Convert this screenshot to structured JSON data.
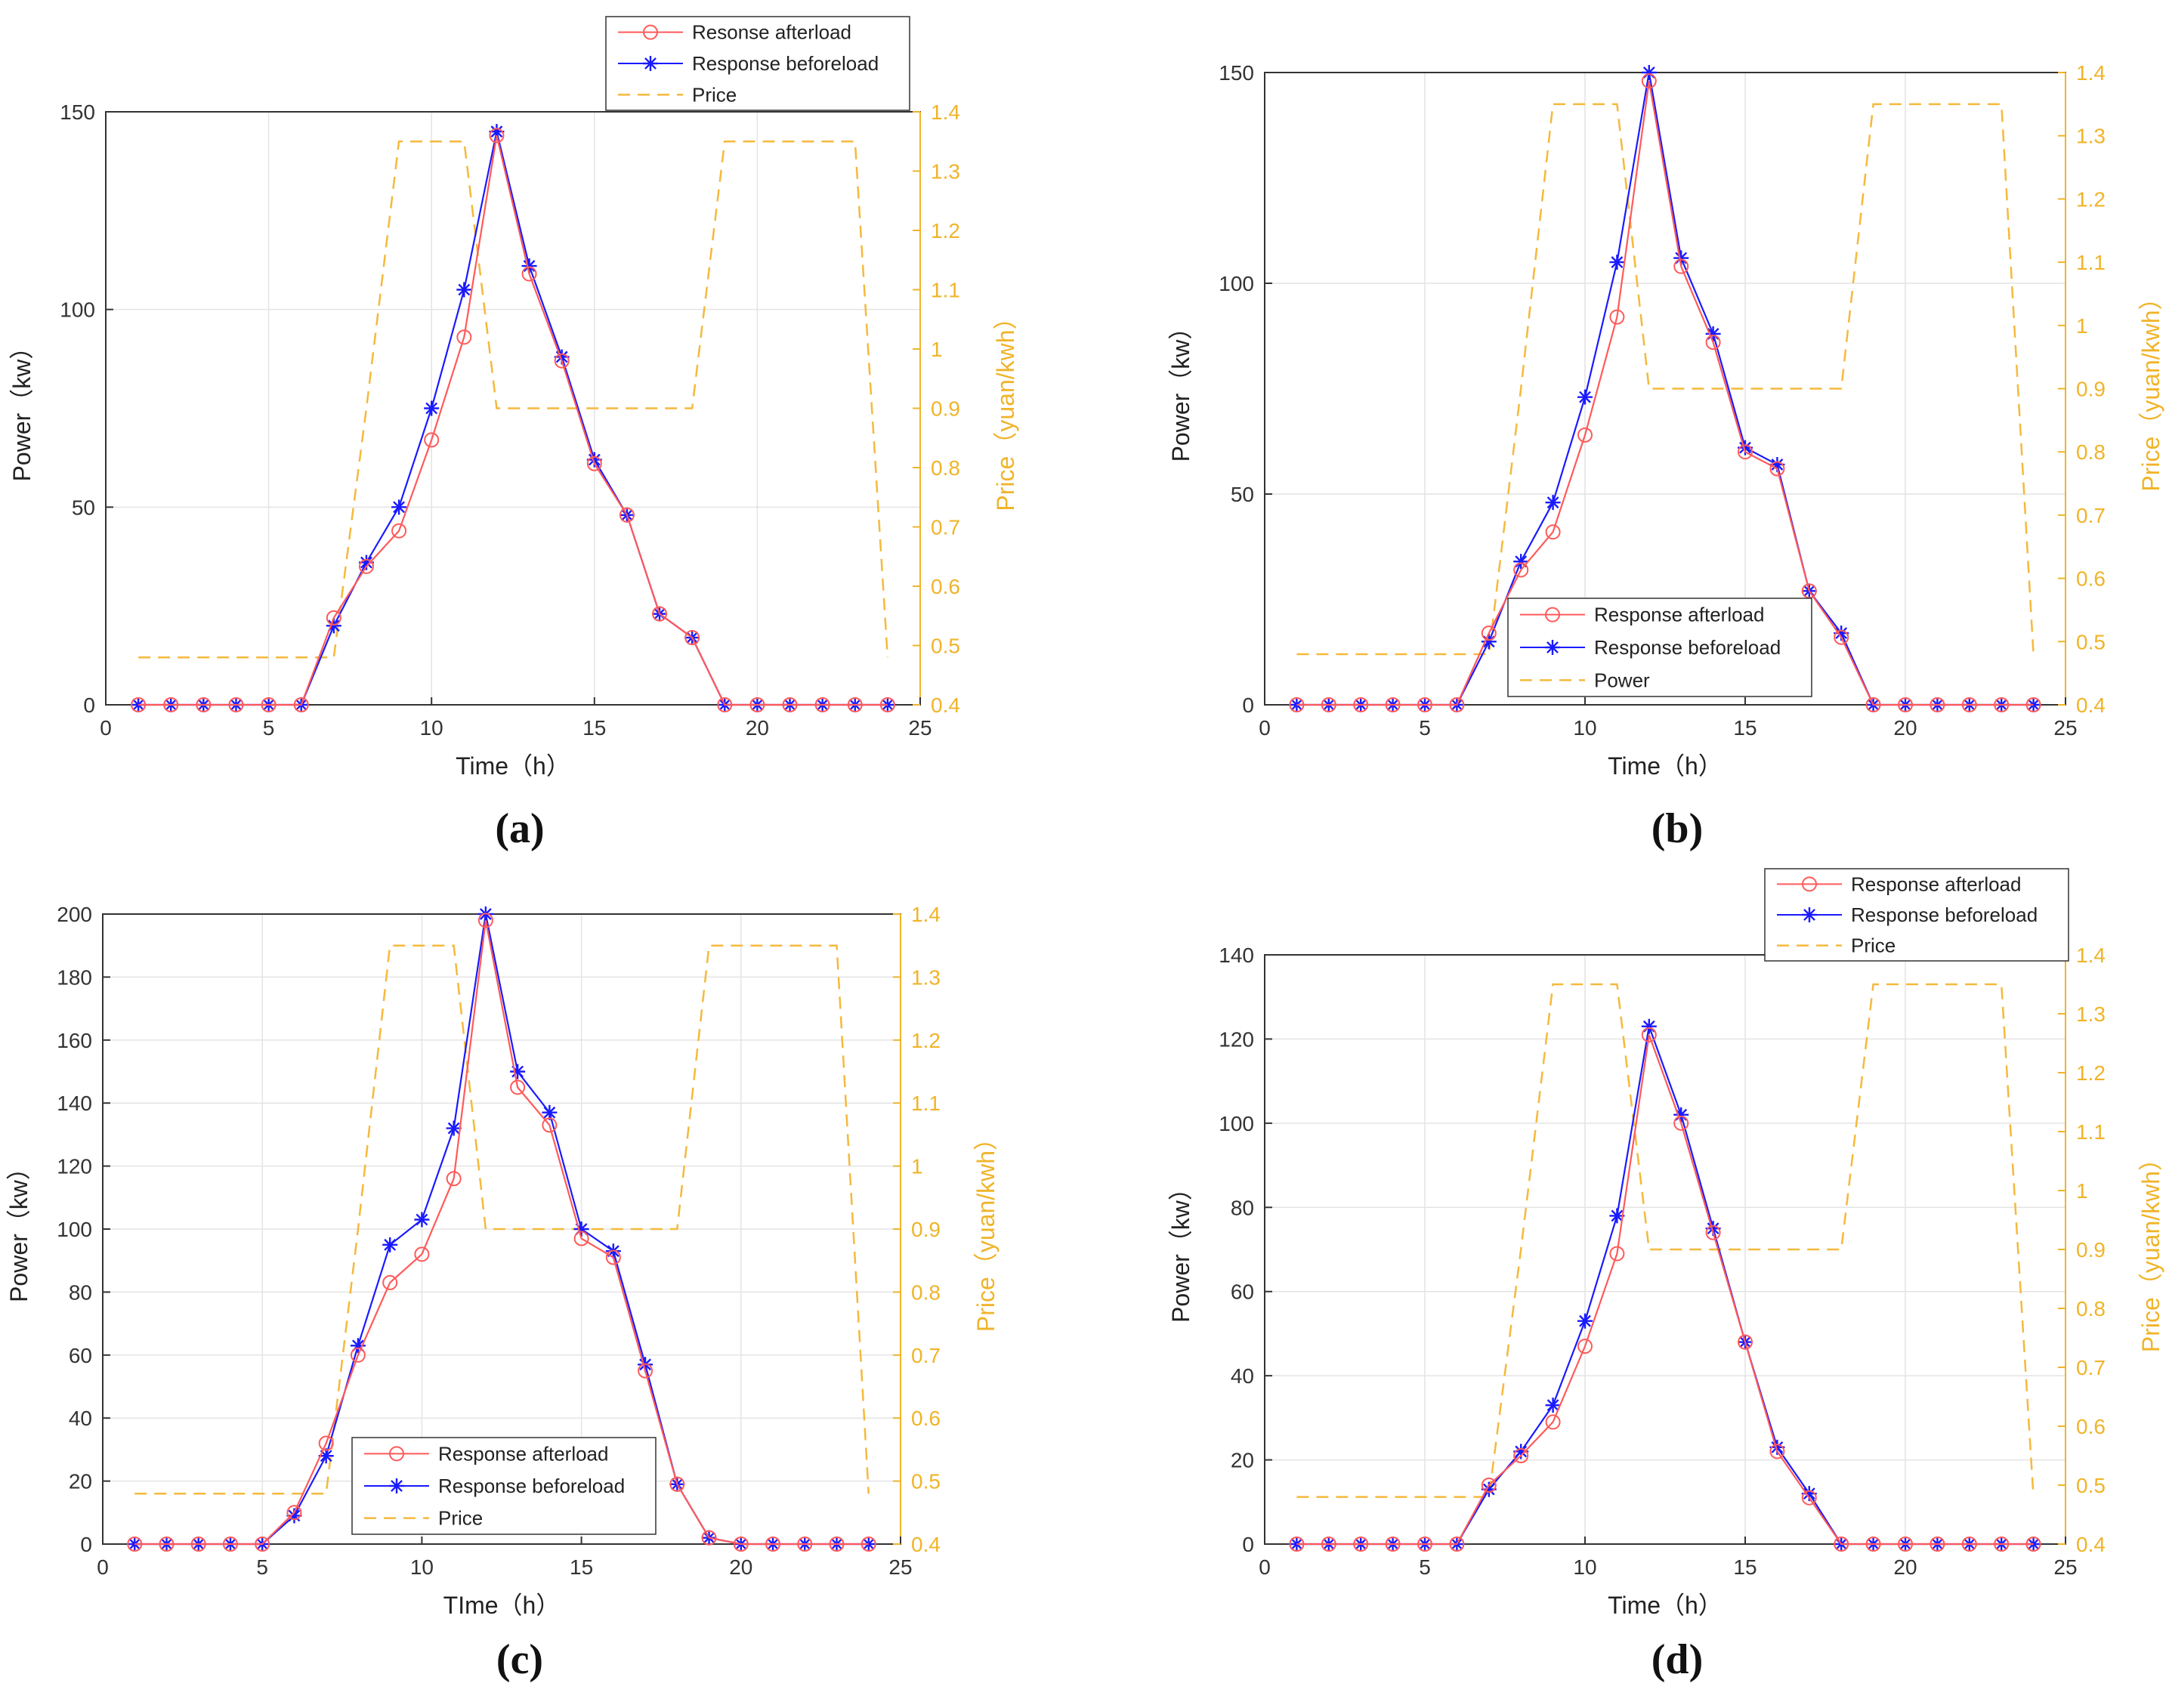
{
  "chart_data": [
    {
      "panel_label": "(a)",
      "type": "line",
      "xlabel": "Time（h）",
      "ylabel": "Power（kw）",
      "ylabel_right": "Price（yuan/kwh）",
      "xlim": [
        0,
        25
      ],
      "ylim": [
        0,
        150
      ],
      "ylim_right": [
        0.4,
        1.4
      ],
      "xticks": [
        0,
        5,
        10,
        15,
        20,
        25
      ],
      "yticks": [
        0,
        50,
        100,
        150
      ],
      "yticks_right": [
        0.4,
        0.5,
        0.6,
        0.7,
        0.8,
        0.9,
        1,
        1.1,
        1.2,
        1.3,
        1.4
      ],
      "grid": true,
      "legend_position": "top-right-outside",
      "x": [
        1,
        2,
        3,
        4,
        5,
        6,
        7,
        8,
        9,
        10,
        11,
        12,
        13,
        14,
        15,
        16,
        17,
        18,
        19,
        20,
        21,
        22,
        23,
        24
      ],
      "series": [
        {
          "name": "Resonse afterload",
          "axis": "left",
          "style": "circle-red",
          "values": [
            0,
            0,
            0,
            0,
            0,
            0,
            22,
            35,
            44,
            67,
            93,
            144,
            109,
            87,
            61,
            48,
            23,
            17,
            0,
            0,
            0,
            0,
            0,
            0
          ]
        },
        {
          "name": "Response beforeload",
          "axis": "left",
          "style": "star-blue",
          "values": [
            0,
            0,
            0,
            0,
            0,
            0,
            20,
            36,
            50,
            75,
            105,
            145,
            111,
            88,
            62,
            48,
            23,
            17,
            0,
            0,
            0,
            0,
            0,
            0
          ]
        },
        {
          "name": "Price",
          "axis": "right",
          "style": "dash-orange",
          "values": [
            0.48,
            0.48,
            0.48,
            0.48,
            0.48,
            0.48,
            0.48,
            0.9,
            1.35,
            1.35,
            1.35,
            0.9,
            0.9,
            0.9,
            0.9,
            0.9,
            0.9,
            0.9,
            1.35,
            1.35,
            1.35,
            1.35,
            1.35,
            0.48
          ]
        }
      ]
    },
    {
      "panel_label": "(b)",
      "type": "line",
      "xlabel": "Time（h）",
      "ylabel": "Power（kw）",
      "ylabel_right": "Price（yuan/kwh）",
      "xlim": [
        0,
        25
      ],
      "ylim": [
        0,
        150
      ],
      "ylim_right": [
        0.4,
        1.4
      ],
      "xticks": [
        0,
        5,
        10,
        15,
        20,
        25
      ],
      "yticks": [
        0,
        50,
        100,
        150
      ],
      "yticks_right": [
        0.4,
        0.5,
        0.6,
        0.7,
        0.8,
        0.9,
        1,
        1.1,
        1.2,
        1.3,
        1.4
      ],
      "grid": true,
      "legend_position": "bottom-center",
      "x": [
        1,
        2,
        3,
        4,
        5,
        6,
        7,
        8,
        9,
        10,
        11,
        12,
        13,
        14,
        15,
        16,
        17,
        18,
        19,
        20,
        21,
        22,
        23,
        24
      ],
      "series": [
        {
          "name": "Response afterload",
          "axis": "left",
          "style": "circle-red",
          "values": [
            0,
            0,
            0,
            0,
            0,
            0,
            17,
            32,
            41,
            64,
            92,
            148,
            104,
            86,
            60,
            56,
            27,
            16,
            0,
            0,
            0,
            0,
            0,
            0
          ]
        },
        {
          "name": "Response beforeload",
          "axis": "left",
          "style": "star-blue",
          "values": [
            0,
            0,
            0,
            0,
            0,
            0,
            15,
            34,
            48,
            73,
            105,
            150,
            106,
            88,
            61,
            57,
            27,
            17,
            0,
            0,
            0,
            0,
            0,
            0
          ]
        },
        {
          "name": "Power",
          "axis": "right",
          "style": "dash-orange",
          "values": [
            0.48,
            0.48,
            0.48,
            0.48,
            0.48,
            0.48,
            0.48,
            0.9,
            1.35,
            1.35,
            1.35,
            0.9,
            0.9,
            0.9,
            0.9,
            0.9,
            0.9,
            0.9,
            1.35,
            1.35,
            1.35,
            1.35,
            1.35,
            0.48
          ]
        }
      ]
    },
    {
      "panel_label": "(c)",
      "type": "line",
      "xlabel": "TIme（h）",
      "ylabel": "Power（kw）",
      "ylabel_right": "Price（yuan/kwh）",
      "xlim": [
        0,
        25
      ],
      "ylim": [
        0,
        200
      ],
      "ylim_right": [
        0.4,
        1.4
      ],
      "xticks": [
        0,
        5,
        10,
        15,
        20,
        25
      ],
      "yticks": [
        0,
        20,
        40,
        60,
        80,
        100,
        120,
        140,
        160,
        180,
        200
      ],
      "yticks_right": [
        0.4,
        0.5,
        0.6,
        0.7,
        0.8,
        0.9,
        1,
        1.1,
        1.2,
        1.3,
        1.4
      ],
      "grid": true,
      "legend_position": "bottom-center",
      "x": [
        1,
        2,
        3,
        4,
        5,
        6,
        7,
        8,
        9,
        10,
        11,
        12,
        13,
        14,
        15,
        16,
        17,
        18,
        19,
        20,
        21,
        22,
        23,
        24
      ],
      "series": [
        {
          "name": "Response afterload",
          "axis": "left",
          "style": "circle-red",
          "values": [
            0,
            0,
            0,
            0,
            0,
            10,
            32,
            60,
            83,
            92,
            116,
            198,
            145,
            133,
            97,
            91,
            55,
            19,
            2,
            0,
            0,
            0,
            0,
            0
          ]
        },
        {
          "name": "Response beforeload",
          "axis": "left",
          "style": "star-blue",
          "values": [
            0,
            0,
            0,
            0,
            0,
            9,
            28,
            63,
            95,
            103,
            132,
            200,
            150,
            137,
            100,
            93,
            57,
            19,
            2,
            0,
            0,
            0,
            0,
            0
          ]
        },
        {
          "name": "Price",
          "axis": "right",
          "style": "dash-orange",
          "values": [
            0.48,
            0.48,
            0.48,
            0.48,
            0.48,
            0.48,
            0.48,
            0.9,
            1.35,
            1.35,
            1.35,
            0.9,
            0.9,
            0.9,
            0.9,
            0.9,
            0.9,
            0.9,
            1.35,
            1.35,
            1.35,
            1.35,
            1.35,
            0.48
          ]
        }
      ]
    },
    {
      "panel_label": "(d)",
      "type": "line",
      "xlabel": "Time（h）",
      "ylabel": "Power（kw）",
      "ylabel_right": "Price（yuan/kwh）",
      "xlim": [
        0,
        25
      ],
      "ylim": [
        0,
        140
      ],
      "ylim_right": [
        0.4,
        1.4
      ],
      "xticks": [
        0,
        5,
        10,
        15,
        20,
        25
      ],
      "yticks": [
        0,
        20,
        40,
        60,
        80,
        100,
        120,
        140
      ],
      "yticks_right": [
        0.4,
        0.5,
        0.6,
        0.7,
        0.8,
        0.9,
        1,
        1.1,
        1.2,
        1.3,
        1.4
      ],
      "grid": true,
      "legend_position": "top-right-outside",
      "x": [
        1,
        2,
        3,
        4,
        5,
        6,
        7,
        8,
        9,
        10,
        11,
        12,
        13,
        14,
        15,
        16,
        17,
        18,
        19,
        20,
        21,
        22,
        23,
        24
      ],
      "series": [
        {
          "name": "Response afterload",
          "axis": "left",
          "style": "circle-red",
          "values": [
            0,
            0,
            0,
            0,
            0,
            0,
            14,
            21,
            29,
            47,
            69,
            121,
            100,
            74,
            48,
            22,
            11,
            0,
            0,
            0,
            0,
            0,
            0,
            0
          ]
        },
        {
          "name": "Response beforeload",
          "axis": "left",
          "style": "star-blue",
          "values": [
            0,
            0,
            0,
            0,
            0,
            0,
            13,
            22,
            33,
            53,
            78,
            123,
            102,
            75,
            48,
            23,
            12,
            0,
            0,
            0,
            0,
            0,
            0,
            0
          ]
        },
        {
          "name": "Price",
          "axis": "right",
          "style": "dash-orange",
          "values": [
            0.48,
            0.48,
            0.48,
            0.48,
            0.48,
            0.48,
            0.48,
            0.9,
            1.35,
            1.35,
            1.35,
            0.9,
            0.9,
            0.9,
            0.9,
            0.9,
            0.9,
            0.9,
            1.35,
            1.35,
            1.35,
            1.35,
            1.35,
            0.48
          ]
        }
      ]
    }
  ]
}
